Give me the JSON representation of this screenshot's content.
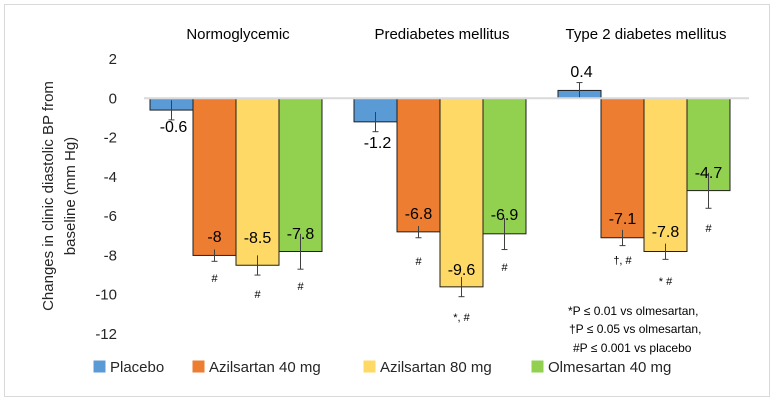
{
  "chart_data": {
    "type": "bar",
    "ylabel": "Changes in clinic diastolic BP from baseline (mm Hg)",
    "ylabel_lines": [
      "Changes in clinic diastolic BP from",
      "baseline (mm Hg)"
    ],
    "ylim": [
      -12,
      2
    ],
    "yticks": [
      "2",
      "0",
      "-2",
      "-4",
      "-6",
      "-8",
      "-10",
      "-12"
    ],
    "grid": false,
    "legend_position": "bottom",
    "groups": [
      "Normoglycemic",
      "Prediabetes mellitus",
      "Type 2 diabetes mellitus"
    ],
    "series": [
      {
        "name": "Placebo",
        "color": "#5b9bd5",
        "values": [
          -0.6,
          -1.2,
          0.4
        ],
        "labels": [
          "-0.6",
          "-1.2",
          "0.4"
        ],
        "errors": [
          0.5,
          0.5,
          0.4
        ],
        "sig": [
          "",
          "",
          ""
        ]
      },
      {
        "name": "Azilsartan 40 mg",
        "color": "#ed7d31",
        "values": [
          -8,
          -6.8,
          -7.1
        ],
        "labels": [
          "-8",
          "-6.8",
          "-7.1"
        ],
        "errors": [
          0.3,
          0.3,
          0.4
        ],
        "sig": [
          "#",
          "#",
          "†, #"
        ]
      },
      {
        "name": "Azilsartan 80 mg",
        "color": "#ffd966",
        "values": [
          -8.5,
          -9.6,
          -7.8
        ],
        "labels": [
          "-8.5",
          "-9.6",
          "-7.8"
        ],
        "errors": [
          0.5,
          0.5,
          0.4
        ],
        "sig": [
          "#",
          "*, #",
          "* #"
        ]
      },
      {
        "name": "Olmesartan 40 mg",
        "color": "#92d050",
        "values": [
          -7.8,
          -6.9,
          -4.7
        ],
        "labels": [
          "-7.8",
          "-6.9",
          "-4.7"
        ],
        "errors": [
          0.9,
          0.8,
          0.9
        ],
        "sig": [
          "#",
          "#",
          "#"
        ]
      }
    ],
    "annotations": [
      "*P ≤  0.01 vs olmesartan,",
      "†P ≤ 0.05 vs olmesartan,",
      "#P ≤  0.001 vs placebo"
    ]
  }
}
